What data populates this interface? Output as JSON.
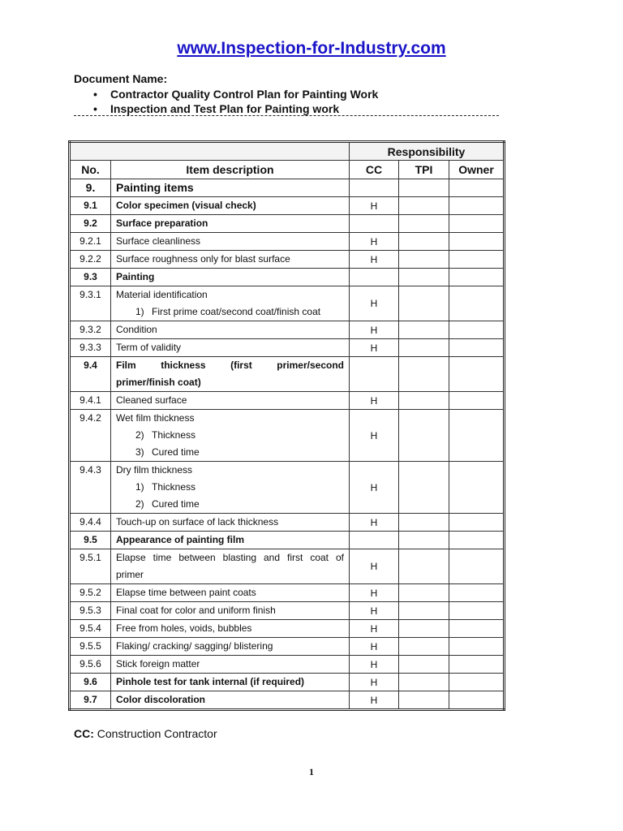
{
  "header": {
    "site": "www.Inspection-for-Industry.com",
    "doc_label": "Document Name:",
    "doc_items": [
      "Contractor Quality Control Plan for Painting Work",
      "Inspection and Test Plan for Painting work"
    ],
    "separator": "dashed-line"
  },
  "table": {
    "group_header": "Responsibility",
    "columns": [
      "No.",
      "Item description",
      "CC",
      "TPI",
      "Owner"
    ],
    "rows": [
      {
        "no": "9.",
        "lines": [
          "Painting items"
        ],
        "bold": true,
        "big": true
      },
      {
        "no": "9.1",
        "lines": [
          "Color specimen (visual check)"
        ],
        "bold": true,
        "cc": "H"
      },
      {
        "no": "9.2",
        "lines": [
          "Surface preparation"
        ],
        "bold": true
      },
      {
        "no": "9.2.1",
        "lines": [
          "Surface cleanliness"
        ],
        "cc": "H"
      },
      {
        "no": "9.2.2",
        "lines": [
          "Surface roughness only for blast surface"
        ],
        "cc": "H"
      },
      {
        "no": "9.3",
        "lines": [
          "Painting"
        ],
        "bold": true
      },
      {
        "no": "9.3.1",
        "lines": [
          "Material identification"
        ],
        "sub": [
          [
            "1)",
            "First prime coat/second coat/finish coat"
          ]
        ],
        "cc": "H"
      },
      {
        "no": "9.3.2",
        "lines": [
          "Condition"
        ],
        "cc": "H"
      },
      {
        "no": "9.3.3",
        "lines": [
          "Term of validity"
        ],
        "cc": "H"
      },
      {
        "no": "9.4",
        "lines": [
          "Film thickness (first primer/second",
          "primer/finish coat)"
        ],
        "bold": true,
        "justify": true
      },
      {
        "no": "9.4.1",
        "lines": [
          "Cleaned surface"
        ],
        "cc": "H"
      },
      {
        "no": "9.4.2",
        "lines": [
          "Wet film thickness"
        ],
        "sub": [
          [
            "2)",
            "Thickness"
          ],
          [
            "3)",
            "Cured time"
          ]
        ],
        "cc": "H"
      },
      {
        "no": "9.4.3",
        "lines": [
          "Dry film thickness"
        ],
        "sub": [
          [
            "1)",
            "Thickness"
          ],
          [
            "2)",
            "Cured time"
          ]
        ],
        "cc": "H"
      },
      {
        "no": "9.4.4",
        "lines": [
          "Touch-up on surface of lack thickness"
        ],
        "cc": "H"
      },
      {
        "no": "9.5",
        "lines": [
          "Appearance of painting film"
        ],
        "bold": true
      },
      {
        "no": "9.5.1",
        "lines": [
          "Elapse time between blasting and first coat of",
          "primer"
        ],
        "cc": "H",
        "justify": true
      },
      {
        "no": "9.5.2",
        "lines": [
          "Elapse time between paint coats"
        ],
        "cc": "H"
      },
      {
        "no": "9.5.3",
        "lines": [
          "Final coat for color and uniform finish"
        ],
        "cc": "H"
      },
      {
        "no": "9.5.4",
        "lines": [
          "Free from holes, voids, bubbles"
        ],
        "cc": "H"
      },
      {
        "no": "9.5.5",
        "lines": [
          "Flaking/ cracking/ sagging/ blistering"
        ],
        "cc": "H"
      },
      {
        "no": "9.5.6",
        "lines": [
          "Stick foreign matter"
        ],
        "cc": "H"
      },
      {
        "no": "9.6",
        "lines": [
          "Pinhole test for tank internal (if required)"
        ],
        "bold": true,
        "cc": "H"
      },
      {
        "no": "9.7",
        "lines": [
          "Color discoloration"
        ],
        "bold": true,
        "cc": "H"
      }
    ]
  },
  "footer": {
    "abbr": "CC:",
    "abbr_text": " Construction Contractor",
    "page": "1"
  },
  "colors": {
    "link": "#1a14c8",
    "text": "#111111"
  }
}
